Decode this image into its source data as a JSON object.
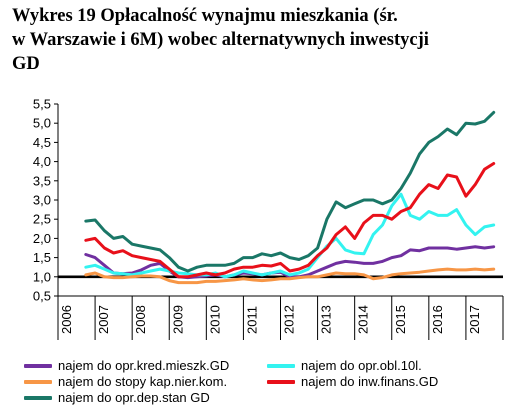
{
  "title": {
    "line1": "Wykres 19 Opłacalność wynajmu mieszkania (śr.",
    "line2": "w Warszawie i 6M) wobec alternatywnych inwestycji",
    "line3": "GD"
  },
  "chart_data": {
    "type": "line",
    "title": "Wykres 19 Opłacalność wynajmu mieszkania (śr. w Warszawie i 6M) wobec alternatywnych inwestycji GD",
    "xlabel": "",
    "ylabel": "",
    "x_tick_labels": [
      "2006",
      "2007",
      "2008",
      "2009",
      "2010",
      "2011",
      "2012",
      "2013",
      "2014",
      "2015",
      "2016",
      "2017"
    ],
    "y_tick_labels": [
      "0,5",
      "1,0",
      "1,5",
      "2,0",
      "2,5",
      "3,0",
      "3,5",
      "4,0",
      "4,5",
      "5,0",
      "5,5"
    ],
    "ylim": [
      0.5,
      5.5
    ],
    "xlim": [
      2006,
      2018
    ],
    "reference_line": 1.0,
    "grid": false,
    "legend_position": "bottom",
    "x": [
      2006.75,
      2007.0,
      2007.25,
      2007.5,
      2007.75,
      2008.0,
      2008.25,
      2008.5,
      2008.75,
      2009.0,
      2009.25,
      2009.5,
      2009.75,
      2010.0,
      2010.25,
      2010.5,
      2010.75,
      2011.0,
      2011.25,
      2011.5,
      2011.75,
      2012.0,
      2012.25,
      2012.5,
      2012.75,
      2013.0,
      2013.25,
      2013.5,
      2013.75,
      2014.0,
      2014.25,
      2014.5,
      2014.75,
      2015.0,
      2015.25,
      2015.5,
      2015.75,
      2016.0,
      2016.25,
      2016.5,
      2016.75,
      2017.0,
      2017.25,
      2017.5,
      2017.75
    ],
    "series": [
      {
        "name": "najem do opr.kred.mieszk.GD",
        "color": "#7030A0",
        "values": [
          1.58,
          1.5,
          1.3,
          1.1,
          1.08,
          1.1,
          1.18,
          1.3,
          1.35,
          1.15,
          1.0,
          0.98,
          1.0,
          1.02,
          1.05,
          1.0,
          1.05,
          1.1,
          1.08,
          1.05,
          1.1,
          1.12,
          1.0,
          1.0,
          1.05,
          1.15,
          1.25,
          1.35,
          1.4,
          1.38,
          1.35,
          1.35,
          1.4,
          1.5,
          1.55,
          1.7,
          1.68,
          1.75,
          1.75,
          1.75,
          1.72,
          1.75,
          1.78,
          1.75,
          1.78
        ]
      },
      {
        "name": "najem do opr.obl.10l.",
        "color": "#33F3F0",
        "values": [
          1.25,
          1.3,
          1.2,
          1.1,
          1.08,
          1.05,
          1.1,
          1.15,
          1.2,
          1.15,
          1.1,
          1.08,
          1.05,
          1.05,
          1.1,
          1.0,
          1.05,
          1.15,
          1.1,
          1.05,
          1.1,
          1.15,
          1.05,
          1.1,
          1.2,
          1.5,
          1.8,
          2.0,
          1.7,
          1.62,
          1.6,
          2.1,
          2.35,
          2.85,
          3.15,
          2.6,
          2.5,
          2.7,
          2.6,
          2.6,
          2.75,
          2.35,
          2.1,
          2.3,
          2.35
        ]
      },
      {
        "name": "najem do stopy kap.nier.kom.",
        "color": "#F79646",
        "values": [
          1.05,
          1.1,
          1.0,
          0.98,
          0.98,
          1.0,
          1.02,
          1.02,
          1.0,
          0.9,
          0.85,
          0.85,
          0.85,
          0.88,
          0.88,
          0.9,
          0.92,
          0.95,
          0.92,
          0.9,
          0.92,
          0.95,
          0.95,
          0.98,
          1.0,
          1.0,
          1.05,
          1.1,
          1.08,
          1.08,
          1.05,
          0.95,
          0.98,
          1.05,
          1.08,
          1.1,
          1.12,
          1.15,
          1.18,
          1.2,
          1.18,
          1.18,
          1.2,
          1.18,
          1.2
        ]
      },
      {
        "name": "najem do inw.finans.GD",
        "color": "#E8101A",
        "values": [
          1.95,
          2.0,
          1.75,
          1.62,
          1.68,
          1.55,
          1.5,
          1.45,
          1.4,
          1.2,
          1.0,
          1.0,
          1.05,
          1.1,
          1.05,
          1.1,
          1.2,
          1.25,
          1.25,
          1.3,
          1.28,
          1.35,
          1.15,
          1.2,
          1.3,
          1.55,
          1.75,
          2.1,
          2.3,
          2.0,
          2.4,
          2.6,
          2.6,
          2.5,
          2.7,
          2.8,
          3.15,
          3.4,
          3.3,
          3.65,
          3.6,
          3.1,
          3.4,
          3.8,
          3.95
        ]
      },
      {
        "name": "najem do opr.dep.stan GD",
        "color": "#1A7767",
        "values": [
          2.45,
          2.48,
          2.2,
          2.0,
          2.05,
          1.85,
          1.8,
          1.75,
          1.7,
          1.5,
          1.25,
          1.15,
          1.25,
          1.3,
          1.3,
          1.3,
          1.35,
          1.5,
          1.5,
          1.6,
          1.55,
          1.62,
          1.5,
          1.45,
          1.55,
          1.75,
          2.5,
          2.95,
          2.8,
          2.9,
          3.0,
          3.0,
          2.9,
          3.0,
          3.3,
          3.7,
          4.2,
          4.5,
          4.65,
          4.85,
          4.7,
          5.0,
          4.98,
          5.05,
          5.28
        ]
      }
    ]
  }
}
